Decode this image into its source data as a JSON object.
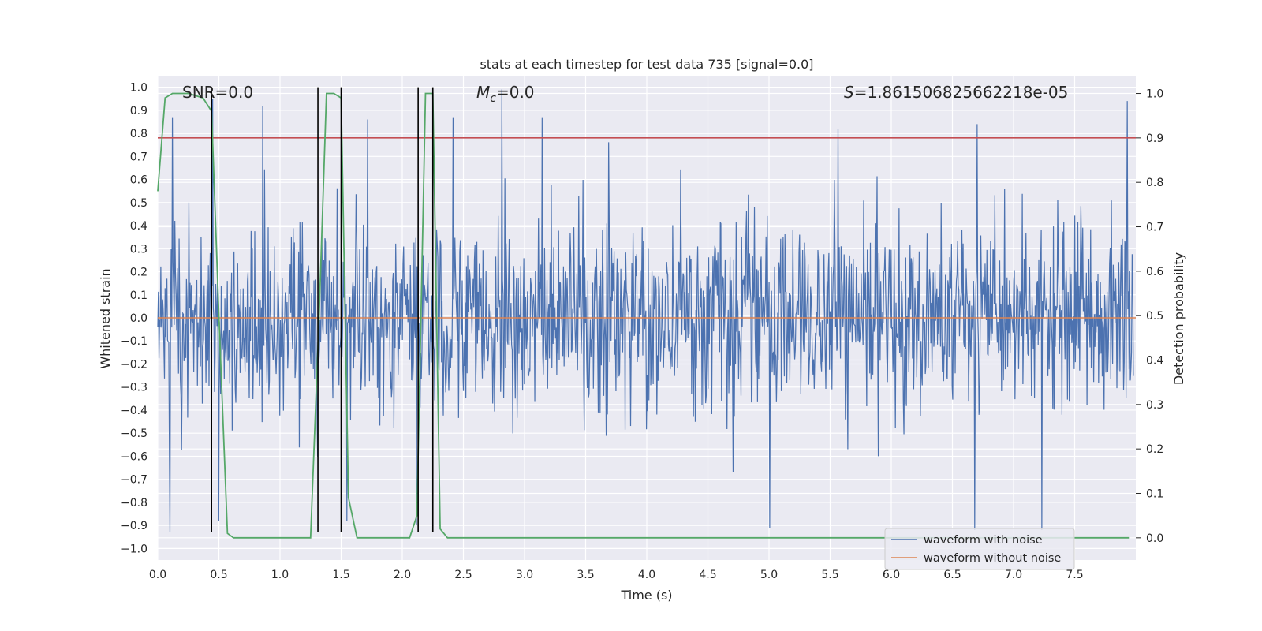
{
  "chart_data": {
    "type": "line",
    "title": "stats at each timestep for test data 735 [signal=0.0]",
    "xlabel": "Time (s)",
    "ylabel": "Whitened strain",
    "y2label": "Detection probability",
    "xlim": [
      0.0,
      8.0
    ],
    "ylim": [
      -1.05,
      1.05
    ],
    "y2lim": [
      -0.05,
      1.04
    ],
    "xticks": [
      0.0,
      0.5,
      1.0,
      1.5,
      2.0,
      2.5,
      3.0,
      3.5,
      4.0,
      4.5,
      5.0,
      5.5,
      6.0,
      6.5,
      7.0,
      7.5
    ],
    "xtick_labels": [
      "0.0",
      "0.5",
      "1.0",
      "1.5",
      "2.0",
      "2.5",
      "3.0",
      "3.5",
      "4.0",
      "4.5",
      "5.0",
      "5.5",
      "6.0",
      "6.5",
      "7.0",
      "7.5"
    ],
    "yticks": [
      1.0,
      0.9,
      0.8,
      0.7,
      0.6,
      0.5,
      0.4,
      0.3,
      0.2,
      0.1,
      0.0,
      -0.1,
      -0.2,
      -0.3,
      -0.4,
      -0.5,
      -0.6,
      -0.7,
      -0.8,
      -0.9,
      -1.0
    ],
    "ytick_labels": [
      "1.0",
      "0.9",
      "0.8",
      "0.7",
      "0.6",
      "0.5",
      "0.4",
      "0.3",
      "0.2",
      "0.1",
      "0.0",
      "−0.1",
      "−0.2",
      "−0.3",
      "−0.4",
      "−0.5",
      "−0.6",
      "−0.7",
      "−0.8",
      "−0.9",
      "−1.0"
    ],
    "y2ticks": [
      1.0,
      0.9,
      0.8,
      0.7,
      0.6,
      0.5,
      0.4,
      0.3,
      0.2,
      0.1,
      0.0
    ],
    "y2tick_labels": [
      "1.0",
      "0.9",
      "0.8",
      "0.7",
      "0.6",
      "0.5",
      "0.4",
      "0.3",
      "0.2",
      "0.1",
      "0.0"
    ],
    "annotations": {
      "snr": "SNR=0.0",
      "mc_symbol": "M",
      "mc_sub": "c",
      "mc_value": "=0.0",
      "s_symbol": "S",
      "s_value": "=1.861506825662218e-05"
    },
    "threshold_line": {
      "y2": 0.9,
      "color": "#c44e52"
    },
    "noiseless_line": {
      "y": 0.0,
      "color": "#dd8452"
    },
    "noisy_series": {
      "name": "waveform with noise",
      "color": "#4c72b0",
      "sample_count": 1600,
      "note": "dense noise, typical amplitude about ±0.3 to ±0.5, spikes up to about 1.0 and down to about −0.93",
      "spikes": [
        [
          0.12,
          0.87
        ],
        [
          0.45,
          0.95
        ],
        [
          0.86,
          0.92
        ],
        [
          1.72,
          0.86
        ],
        [
          2.42,
          0.87
        ],
        [
          2.82,
          0.99
        ],
        [
          3.15,
          0.87
        ],
        [
          5.58,
          0.82
        ],
        [
          6.72,
          0.84
        ],
        [
          7.95,
          0.94
        ],
        [
          0.1,
          -0.93
        ],
        [
          0.5,
          -0.88
        ],
        [
          1.55,
          -0.88
        ],
        [
          2.12,
          -0.9
        ],
        [
          5.02,
          -0.91
        ],
        [
          6.7,
          -0.92
        ],
        [
          7.25,
          -0.92
        ]
      ]
    },
    "probability_series": {
      "name": "detection probability",
      "color": "#55a868",
      "x": [
        0.0,
        0.06,
        0.12,
        0.25,
        0.37,
        0.44,
        0.5,
        0.57,
        0.62,
        1.0,
        1.25,
        1.32,
        1.38,
        1.44,
        1.5,
        1.56,
        1.63,
        2.06,
        2.12,
        2.19,
        2.25,
        2.31,
        2.37,
        3.0,
        5.0,
        7.0,
        7.95
      ],
      "y": [
        0.78,
        0.99,
        1.0,
        1.0,
        0.99,
        0.96,
        0.5,
        0.01,
        0.0,
        0.0,
        0.0,
        0.5,
        1.0,
        1.0,
        0.99,
        0.09,
        0.0,
        0.0,
        0.05,
        1.0,
        1.0,
        0.02,
        0.0,
        0.0,
        0.0,
        0.0,
        0.0
      ]
    },
    "vertical_markers": {
      "color": "#000000",
      "x": [
        0.44,
        1.31,
        1.5,
        2.13,
        2.25
      ],
      "y_from": -0.93,
      "y_to": 1.0
    },
    "legend": {
      "placement": "lower-right",
      "entries": [
        {
          "label": "waveform with noise",
          "color": "#4c72b0"
        },
        {
          "label": "waveform without noise",
          "color": "#dd8452"
        }
      ]
    }
  }
}
